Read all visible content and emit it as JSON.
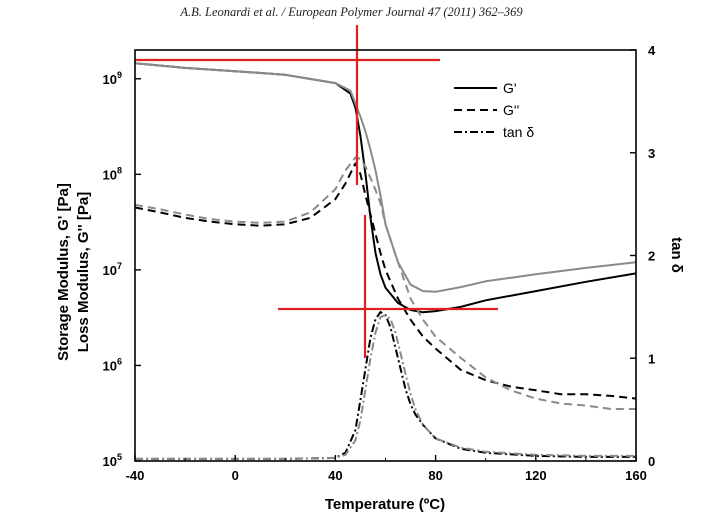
{
  "header": {
    "citation": "A.B. Leonardi et al. / European Polymer Journal 47 (2011) 362–369"
  },
  "chart_data": {
    "type": "line",
    "xlabel": "Temperature (ºC)",
    "ylabel_left_line1": "Storage Modulus, G' [Pa]",
    "ylabel_left_line2": "Loss Modulus, G'' [Pa]",
    "ylabel_right": "tan δ",
    "xlim": [
      -40,
      160
    ],
    "ylim_left": [
      100000,
      2000000000
    ],
    "ylim_right": [
      0,
      4
    ],
    "left_scale": "log",
    "x_ticks": [
      "-40",
      "0",
      "40",
      "80",
      "120",
      "160"
    ],
    "y_left_ticks": [
      {
        "base": "10",
        "exp": "5",
        "value": 100000
      },
      {
        "base": "10",
        "exp": "6",
        "value": 1000000
      },
      {
        "base": "10",
        "exp": "7",
        "value": 10000000
      },
      {
        "base": "10",
        "exp": "8",
        "value": 100000000
      },
      {
        "base": "10",
        "exp": "9",
        "value": 1000000000
      }
    ],
    "y_right_ticks": [
      "0",
      "1",
      "2",
      "3",
      "4"
    ],
    "legend": [
      "G'",
      "G''",
      "tan δ"
    ],
    "legend_position": "top-right",
    "colors": {
      "dark": "#000000",
      "gray": "#8a8a8a",
      "annotation": "#e02020"
    },
    "series": [
      {
        "style": "solid",
        "color": "#000000",
        "axis": "left",
        "x": [
          -40,
          -20,
          0,
          20,
          40,
          46,
          48,
          50,
          52,
          54,
          56,
          58,
          60,
          65,
          70,
          75,
          80,
          90,
          100,
          120,
          140,
          160
        ],
        "y": [
          1450000000.0,
          1300000000.0,
          1200000000.0,
          1100000000.0,
          900000000.0,
          700000000.0,
          500000000.0,
          250000000.0,
          100000000.0,
          35000000.0,
          15000000.0,
          9000000.0,
          6500000.0,
          4500000.0,
          3800000.0,
          3600000.0,
          3700000.0,
          4100000.0,
          4800000.0,
          6000000.0,
          7500000.0,
          9200000.0
        ]
      },
      {
        "style": "solid",
        "color": "#8a8a8a",
        "axis": "left",
        "x": [
          -40,
          -20,
          0,
          20,
          40,
          46,
          48,
          50,
          52,
          54,
          56,
          58,
          60,
          65,
          70,
          75,
          80,
          90,
          100,
          120,
          140,
          160
        ],
        "y": [
          1450000000.0,
          1300000000.0,
          1200000000.0,
          1100000000.0,
          900000000.0,
          750000000.0,
          550000000.0,
          400000000.0,
          280000000.0,
          180000000.0,
          110000000.0,
          60000000.0,
          30000000.0,
          12000000.0,
          7000000.0,
          6000000.0,
          5900000.0,
          6600000.0,
          7600000.0,
          9000000.0,
          10500000.0,
          12000000.0
        ]
      },
      {
        "style": "dashed",
        "color": "#000000",
        "axis": "left",
        "x": [
          -40,
          -30,
          -20,
          -10,
          0,
          10,
          20,
          30,
          40,
          44,
          48,
          50,
          52,
          55,
          58,
          60,
          65,
          70,
          75,
          80,
          90,
          100,
          110,
          120,
          130,
          140,
          150,
          160
        ],
        "y": [
          45000000.0,
          40000000.0,
          35000000.0,
          32000000.0,
          30000000.0,
          29000000.0,
          30000000.0,
          35000000.0,
          55000000.0,
          80000000.0,
          130000000.0,
          100000000.0,
          60000000.0,
          30000000.0,
          15000000.0,
          10000000.0,
          5000000.0,
          3000000.0,
          2000000.0,
          1500000.0,
          900000.0,
          700000.0,
          600000.0,
          550000.0,
          500000.0,
          500000.0,
          480000.0,
          450000.0
        ]
      },
      {
        "style": "dashed",
        "color": "#8a8a8a",
        "axis": "left",
        "x": [
          -40,
          -30,
          -20,
          -10,
          0,
          10,
          20,
          30,
          40,
          44,
          48,
          50,
          52,
          55,
          58,
          60,
          65,
          70,
          75,
          80,
          90,
          100,
          110,
          120,
          130,
          140,
          150,
          160
        ],
        "y": [
          48000000.0,
          43000000.0,
          38000000.0,
          34000000.0,
          32000000.0,
          31000000.0,
          32000000.0,
          40000000.0,
          70000000.0,
          110000000.0,
          150000000.0,
          145000000.0,
          120000000.0,
          80000000.0,
          50000000.0,
          30000000.0,
          12000000.0,
          5000000.0,
          3000000.0,
          2000000.0,
          1200000.0,
          750000.0,
          550000.0,
          450000.0,
          400000.0,
          380000.0,
          350000.0,
          350000.0
        ]
      },
      {
        "style": "dashdot",
        "color": "#000000",
        "axis": "right",
        "x": [
          -40,
          0,
          20,
          40,
          44,
          48,
          50,
          52,
          54,
          56,
          58,
          60,
          62,
          64,
          66,
          68,
          70,
          72,
          75,
          80,
          90,
          100,
          120,
          140,
          160
        ],
        "y": [
          0.02,
          0.02,
          0.02,
          0.03,
          0.08,
          0.3,
          0.6,
          0.9,
          1.2,
          1.38,
          1.45,
          1.42,
          1.3,
          1.1,
          0.9,
          0.7,
          0.55,
          0.45,
          0.35,
          0.22,
          0.12,
          0.08,
          0.05,
          0.04,
          0.04
        ]
      },
      {
        "style": "dashdot",
        "color": "#8a8a8a",
        "axis": "right",
        "x": [
          -40,
          0,
          20,
          40,
          44,
          48,
          50,
          52,
          54,
          56,
          58,
          60,
          62,
          64,
          66,
          68,
          70,
          72,
          75,
          80,
          90,
          100,
          120,
          140,
          160
        ],
        "y": [
          0.02,
          0.02,
          0.02,
          0.03,
          0.06,
          0.2,
          0.4,
          0.7,
          1.0,
          1.25,
          1.4,
          1.42,
          1.38,
          1.25,
          1.05,
          0.85,
          0.65,
          0.5,
          0.35,
          0.22,
          0.13,
          0.09,
          0.06,
          0.05,
          0.05
        ]
      }
    ]
  }
}
